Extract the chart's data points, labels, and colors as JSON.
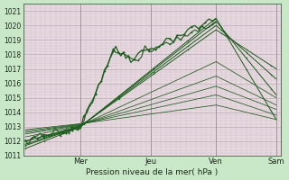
{
  "xlabel": "Pression niveau de la mer( hPa )",
  "bg_color": "#c8e8c8",
  "plot_bg_color": "#e8d8e0",
  "grid_major_color": "#b8a8b8",
  "grid_minor_color": "#ccc0cc",
  "line_dark": "#1a5c1a",
  "line_med": "#2d6e2d",
  "ylim": [
    1011,
    1021.5
  ],
  "yticks": [
    1011,
    1012,
    1013,
    1014,
    1015,
    1016,
    1017,
    1018,
    1019,
    1020,
    1021
  ],
  "day_labels": [
    "Mer",
    "Jeu",
    "Ven",
    "Sam"
  ],
  "day_positions": [
    0.22,
    0.5,
    0.76,
    1.0
  ],
  "xlim": [
    -0.01,
    1.02
  ]
}
